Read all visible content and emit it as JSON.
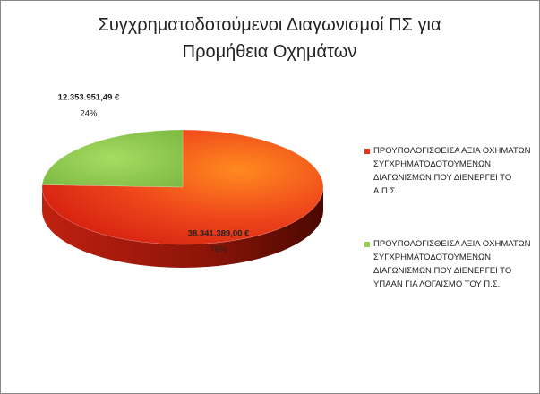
{
  "chart_data": {
    "type": "pie",
    "title": "Συγχρηματοδοτούμενοι Διαγωνισμοί ΠΣ για Προμήθεια Οχημάτων",
    "categories": [
      "ΠΡΟΥΠΟΛΟΓΙΣΘΕΙΣΑ ΑΞΙΑ ΟΧΗΜΑΤΩΝ ΣΥΓΧΡΗΜΑΤΟΔΟΤΟΥΜΕΝΩΝ ΔΙΑΓΩΝΙΣΜΩΝ ΠΟΥ ΔΙΕΝΕΡΓΕΙ ΤΟ Α.Π.Σ.",
      "ΠΡΟΥΠΟΛΟΓΙΣΘΕΙΣΑ ΑΞΙΑ ΟΧΗΜΑΤΩΝ ΣΥΓΧΡΗΜΑΤΟΔΟΤΟΥΜΕΝΩΝ ΔΙΑΓΩΝΙΣΜΩΝ ΠΟΥ ΔΙΕΝΕΡΓΕΙ ΤΟ ΥΠΑΑΝ ΓΙΑ ΛΟΓΑΙΣΜΟ ΤΟΥ Π.Σ."
    ],
    "values": [
      38341389.0,
      12353951.49
    ],
    "value_labels": [
      "38.341.389,00 €",
      "12.353.951,49 €"
    ],
    "percents": [
      76,
      24
    ],
    "percent_labels": [
      "76%",
      "24%"
    ],
    "colors": [
      "#e8321c",
      "#92d050"
    ],
    "legend": "right"
  }
}
